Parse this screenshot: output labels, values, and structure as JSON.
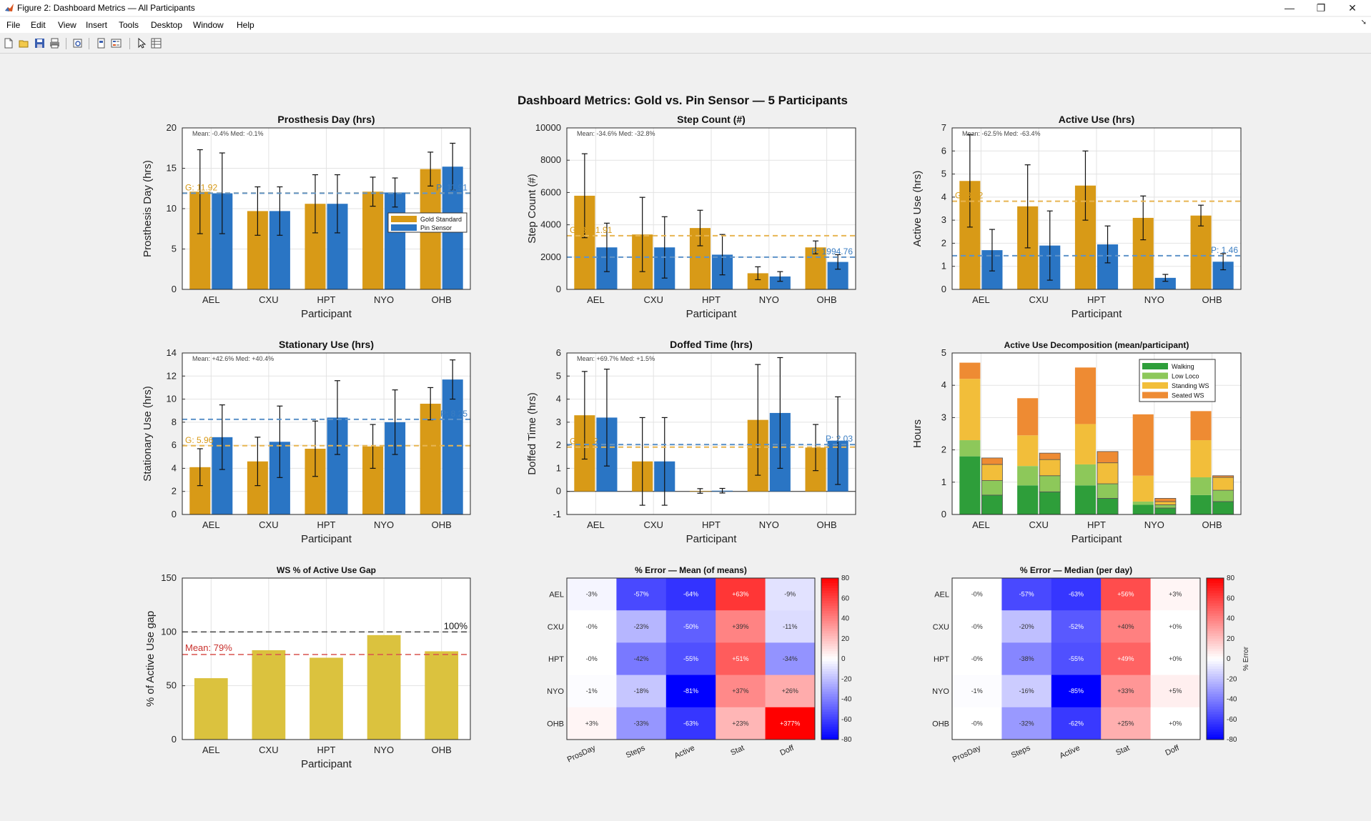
{
  "window": {
    "title": "Figure 2: Dashboard Metrics — All Participants",
    "minimize": "—",
    "maximize": "❐",
    "close": "✕"
  },
  "menu": [
    "File",
    "Edit",
    "View",
    "Insert",
    "Tools",
    "Desktop",
    "Window",
    "Help"
  ],
  "toolbar_icons": [
    "new-figure-icon",
    "open-file-icon",
    "save-icon",
    "print-icon",
    "print-preview-icon",
    "link-plot-icon",
    "insert-legend-icon",
    "pointer-icon",
    "property-inspector-icon"
  ],
  "figure_title": "Dashboard Metrics: Gold vs. Pin Sensor — 5 Participants",
  "colors": {
    "gold": "#D89A17",
    "pin": "#2A75C4",
    "walking": "#2E9E3A",
    "low_loco": "#8DC85A",
    "standing_ws": "#F2BE3A",
    "seated_ws": "#EE8B33",
    "ws_bar": "#DBC23E"
  },
  "chart_data": [
    {
      "type": "bar",
      "title": "Prosthesis Day (hrs)",
      "xlabel": "Participant",
      "ylabel": "Prosthesis Day (hrs)",
      "categories": [
        "AEL",
        "CXU",
        "HPT",
        "NYO",
        "OHB"
      ],
      "ylim": [
        0,
        20
      ],
      "yticks": [
        "0",
        "5",
        "10",
        "15",
        "20"
      ],
      "series": [
        {
          "name": "Gold Standard",
          "values": [
            12.1,
            9.7,
            10.6,
            12.1,
            14.9
          ],
          "err": [
            5.2,
            3.0,
            3.6,
            1.8,
            2.1
          ]
        },
        {
          "name": "Pin Sensor",
          "values": [
            11.9,
            9.7,
            10.6,
            12.0,
            15.2
          ],
          "err": [
            5.0,
            3.0,
            3.6,
            1.8,
            2.9
          ]
        }
      ],
      "note": "Mean: -0.4%  Med: -0.1%",
      "refs": [
        {
          "label": "G: 11.92",
          "value": 11.92,
          "series": 0
        },
        {
          "label": "P: 11.91",
          "value": 11.91,
          "series": 1
        }
      ],
      "legend": "middle-right",
      "grid": true
    },
    {
      "type": "bar",
      "title": "Step Count (#)",
      "xlabel": "Participant",
      "ylabel": "Step Count (#)",
      "categories": [
        "AEL",
        "CXU",
        "HPT",
        "NYO",
        "OHB"
      ],
      "ylim": [
        0,
        10000
      ],
      "yticks": [
        "0",
        "2000",
        "4000",
        "6000",
        "8000",
        "10000"
      ],
      "series": [
        {
          "name": "Gold Standard",
          "values": [
            5800,
            3400,
            3800,
            1000,
            2600
          ],
          "err": [
            2600,
            2300,
            1100,
            400,
            400
          ]
        },
        {
          "name": "Pin Sensor",
          "values": [
            2600,
            2600,
            2150,
            800,
            1700
          ],
          "err": [
            1500,
            1900,
            1250,
            300,
            450
          ]
        }
      ],
      "note": "Mean: -34.6%  Med: -32.8%",
      "refs": [
        {
          "label": "G: 3321.91",
          "value": 3321.91,
          "series": 0
        },
        {
          "label": "P: 1994.76",
          "value": 1994.76,
          "series": 1
        }
      ],
      "grid": true
    },
    {
      "type": "bar",
      "title": "Active Use (hrs)",
      "xlabel": "Participant",
      "ylabel": "Active Use (hrs)",
      "categories": [
        "AEL",
        "CXU",
        "HPT",
        "NYO",
        "OHB"
      ],
      "ylim": [
        0,
        7
      ],
      "yticks": [
        "0",
        "1",
        "2",
        "3",
        "4",
        "5",
        "6",
        "7"
      ],
      "series": [
        {
          "name": "Gold Standard",
          "values": [
            4.7,
            3.6,
            4.5,
            3.1,
            3.2
          ],
          "err": [
            2.0,
            1.8,
            1.5,
            0.95,
            0.45
          ]
        },
        {
          "name": "Pin Sensor",
          "values": [
            1.7,
            1.9,
            1.95,
            0.5,
            1.2
          ],
          "err": [
            0.9,
            1.5,
            0.8,
            0.15,
            0.35
          ]
        }
      ],
      "note": "Mean: -62.5%  Med: -63.4%",
      "refs": [
        {
          "label": "G: 3.82",
          "value": 3.82,
          "series": 0
        },
        {
          "label": "P: 1.46",
          "value": 1.46,
          "series": 1
        }
      ],
      "grid": true
    },
    {
      "type": "bar",
      "title": "Stationary Use (hrs)",
      "xlabel": "Participant",
      "ylabel": "Stationary Use (hrs)",
      "categories": [
        "AEL",
        "CXU",
        "HPT",
        "NYO",
        "OHB"
      ],
      "ylim": [
        0,
        14
      ],
      "yticks": [
        "0",
        "2",
        "4",
        "6",
        "8",
        "10",
        "12",
        "14"
      ],
      "series": [
        {
          "name": "Gold Standard",
          "values": [
            4.1,
            4.6,
            5.7,
            5.9,
            9.6
          ],
          "err": [
            1.6,
            2.1,
            2.4,
            1.9,
            1.4
          ]
        },
        {
          "name": "Pin Sensor",
          "values": [
            6.7,
            6.3,
            8.4,
            8.0,
            11.7
          ],
          "err": [
            2.8,
            3.1,
            3.2,
            2.8,
            1.7
          ]
        }
      ],
      "note": "Mean: +42.6%  Med: +40.4%",
      "refs": [
        {
          "label": "G: 5.96",
          "value": 5.96,
          "series": 0
        },
        {
          "label": "P: 8.25",
          "value": 8.25,
          "series": 1
        }
      ],
      "grid": true
    },
    {
      "type": "bar",
      "title": "Doffed Time (hrs)",
      "xlabel": "Participant",
      "ylabel": "Doffed Time (hrs)",
      "categories": [
        "AEL",
        "CXU",
        "HPT",
        "NYO",
        "OHB"
      ],
      "ylim": [
        -1,
        6
      ],
      "yticks": [
        "-1",
        "0",
        "1",
        "2",
        "3",
        "4",
        "5",
        "6"
      ],
      "series": [
        {
          "name": "Gold Standard",
          "values": [
            3.3,
            1.3,
            0.02,
            3.1,
            1.9
          ],
          "err": [
            1.9,
            1.9,
            0.1,
            2.4,
            1.0
          ]
        },
        {
          "name": "Pin Sensor",
          "values": [
            3.2,
            1.3,
            0.03,
            3.4,
            2.2
          ],
          "err": [
            2.1,
            1.9,
            0.1,
            2.4,
            1.9
          ]
        }
      ],
      "note": "Mean: +69.7%  Med: +1.5%",
      "refs": [
        {
          "label": "G: 1.92",
          "value": 1.92,
          "series": 0
        },
        {
          "label": "P: 2.03",
          "value": 2.03,
          "series": 1
        }
      ],
      "grid": true
    },
    {
      "type": "bar",
      "subtype": "stacked",
      "title": "Active Use Decomposition (mean/participant)",
      "xlabel": "Participant",
      "ylabel": "Hours",
      "categories": [
        "AEL",
        "CXU",
        "HPT",
        "NYO",
        "OHB"
      ],
      "ylim": [
        0,
        5
      ],
      "yticks": [
        "0",
        "1",
        "2",
        "3",
        "4",
        "5"
      ],
      "groups": [
        "Gold Standard",
        "Pin Sensor"
      ],
      "series": [
        {
          "name": "Walking",
          "gold": [
            1.8,
            0.9,
            0.9,
            0.3,
            0.6
          ],
          "pin": [
            0.6,
            0.7,
            0.5,
            0.2,
            0.4
          ]
        },
        {
          "name": "Low Loco",
          "gold": [
            0.5,
            0.6,
            0.65,
            0.1,
            0.55
          ],
          "pin": [
            0.45,
            0.5,
            0.45,
            0.1,
            0.35
          ]
        },
        {
          "name": "Standing WS",
          "gold": [
            1.9,
            0.95,
            1.25,
            0.8,
            1.15
          ],
          "pin": [
            0.5,
            0.5,
            0.65,
            0.1,
            0.4
          ]
        },
        {
          "name": "Seated WS",
          "gold": [
            0.5,
            1.15,
            1.75,
            1.9,
            0.9
          ],
          "pin": [
            0.2,
            0.2,
            0.35,
            0.1,
            0.05
          ]
        }
      ],
      "legend": "top-right",
      "grid": true
    },
    {
      "type": "bar",
      "title": "WS % of Active Use Gap",
      "xlabel": "Participant",
      "ylabel": "% of Active Use gap",
      "categories": [
        "AEL",
        "CXU",
        "HPT",
        "NYO",
        "OHB"
      ],
      "ylim": [
        0,
        150
      ],
      "yticks": [
        "0",
        "50",
        "100",
        "150"
      ],
      "values": [
        57,
        83,
        76,
        97,
        82
      ],
      "refs": [
        {
          "label": "100%",
          "value": 100
        },
        {
          "label": "Mean: 79%",
          "value": 79
        }
      ],
      "grid": true
    },
    {
      "type": "heatmap",
      "title": "% Error — Mean (of means)",
      "rows": [
        "AEL",
        "CXU",
        "HPT",
        "NYO",
        "OHB"
      ],
      "cols": [
        "ProsDay",
        "Steps",
        "Active",
        "Stat",
        "Doff"
      ],
      "values": [
        [
          -3,
          -57,
          -64,
          63,
          -9
        ],
        [
          0,
          -23,
          -50,
          39,
          -11
        ],
        [
          0,
          -42,
          -55,
          51,
          -34
        ],
        [
          -1,
          -18,
          -81,
          37,
          26
        ],
        [
          3,
          -33,
          -63,
          23,
          377
        ]
      ],
      "labels": [
        [
          "-3%",
          "-57%",
          "-64%",
          "+63%",
          "-9%"
        ],
        [
          "-0%",
          "-23%",
          "-50%",
          "+39%",
          "-11%"
        ],
        [
          "-0%",
          "-42%",
          "-55%",
          "+51%",
          "-34%"
        ],
        [
          "-1%",
          "-18%",
          "-81%",
          "+37%",
          "+26%"
        ],
        [
          "+3%",
          "-33%",
          "-63%",
          "+23%",
          "+377%"
        ]
      ],
      "clim": [
        -80,
        80
      ],
      "cbar_ticks": [
        "80",
        "60",
        "40",
        "20",
        "0",
        "-20",
        "-40",
        "-60",
        "-80"
      ],
      "cbar_label": ""
    },
    {
      "type": "heatmap",
      "title": "% Error — Median (per day)",
      "rows": [
        "AEL",
        "CXU",
        "HPT",
        "NYO",
        "OHB"
      ],
      "cols": [
        "ProsDay",
        "Steps",
        "Active",
        "Stat",
        "Doff"
      ],
      "values": [
        [
          0,
          -57,
          -63,
          56,
          3
        ],
        [
          0,
          -20,
          -52,
          40,
          0
        ],
        [
          0,
          -38,
          -55,
          49,
          0
        ],
        [
          -1,
          -16,
          -85,
          33,
          5
        ],
        [
          0,
          -32,
          -62,
          25,
          0
        ]
      ],
      "labels": [
        [
          "-0%",
          "-57%",
          "-63%",
          "+56%",
          "+3%"
        ],
        [
          "-0%",
          "-20%",
          "-52%",
          "+40%",
          "+0%"
        ],
        [
          "-0%",
          "-38%",
          "-55%",
          "+49%",
          "+0%"
        ],
        [
          "-1%",
          "-16%",
          "-85%",
          "+33%",
          "+5%"
        ],
        [
          "-0%",
          "-32%",
          "-62%",
          "+25%",
          "+0%"
        ]
      ],
      "clim": [
        -80,
        80
      ],
      "cbar_ticks": [
        "80",
        "60",
        "40",
        "20",
        "0",
        "-20",
        "-40",
        "-60",
        "-80"
      ],
      "cbar_label": "% Error"
    }
  ]
}
